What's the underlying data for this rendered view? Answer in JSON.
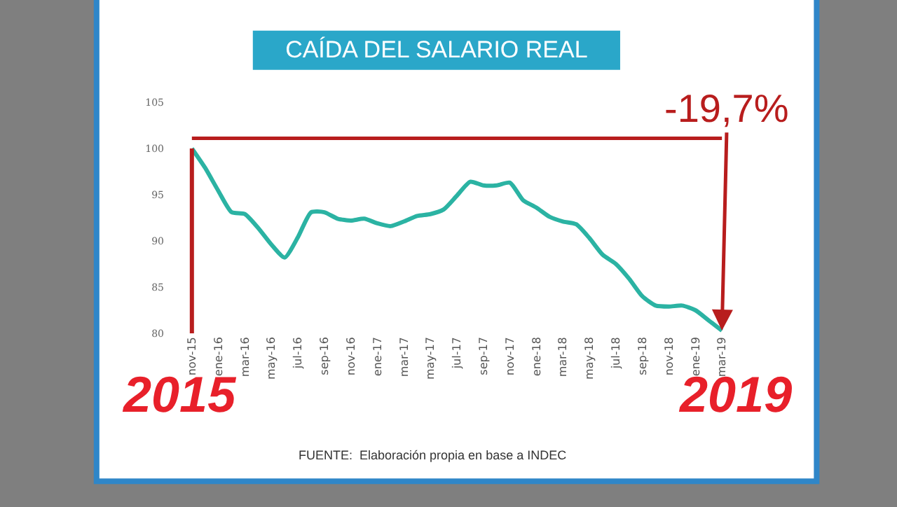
{
  "chart_data": {
    "type": "line",
    "title": "CAÍDA DEL SALARIO REAL",
    "categories": [
      "nov-15",
      null,
      "ene-16",
      null,
      "mar-16",
      null,
      "may-16",
      null,
      "jul-16",
      null,
      "sep-16",
      null,
      "nov-16",
      null,
      "ene-17",
      null,
      "mar-17",
      null,
      "may-17",
      null,
      "jul-17",
      null,
      "sep-17",
      null,
      "nov-17",
      null,
      "ene-18",
      null,
      "mar-18",
      null,
      "may-18",
      null,
      "jul-18",
      null,
      "sep-18",
      null,
      "nov-18",
      null,
      "ene-19",
      null,
      "mar-19"
    ],
    "series": [
      {
        "color": "#2bb3a3",
        "values": [
          100,
          97.9,
          95.4,
          93.1,
          92.9,
          91.4,
          89.6,
          88.2,
          90.4,
          93.1,
          93.1,
          92.4,
          92.2,
          92.4,
          91.9,
          91.6,
          92.1,
          92.7,
          92.9,
          93.4,
          94.9,
          96.4,
          96.0,
          96.0,
          96.3,
          94.4,
          93.6,
          92.6,
          92.1,
          91.8,
          90.3,
          88.5,
          87.5,
          85.9,
          84.0,
          83.0,
          82.9,
          83.0,
          82.5,
          81.4,
          80.3
        ]
      }
    ],
    "ylim": [
      80,
      105
    ],
    "yticks": [
      80,
      85,
      90,
      95,
      100,
      105
    ],
    "legend": false,
    "marker": "none",
    "line_style": "solid",
    "ref_lines": [
      {
        "axis": "y",
        "value": 101.1,
        "color": "#b81d1d"
      },
      {
        "axis": "x",
        "value": "nov-15",
        "color": "#b81d1d"
      }
    ],
    "annotations": [
      {
        "text": "-19,7%",
        "x": "mar-19",
        "y": 80.3
      },
      "2015",
      "2019",
      "FUENTE:  Elaboración propia en base a INDEC"
    ]
  }
}
